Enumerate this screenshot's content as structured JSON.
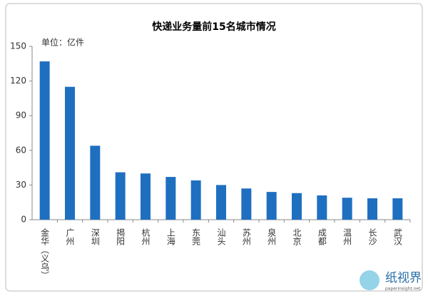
{
  "chart_data": {
    "type": "bar",
    "title": "快递业务量前15名城市情况",
    "unit_label": "单位：亿件",
    "categories": [
      "金华（义乌）",
      "广州",
      "深圳",
      "揭阳",
      "杭州",
      "上海",
      "东莞",
      "汕头",
      "苏州",
      "泉州",
      "北京",
      "成都",
      "温州",
      "长沙",
      "武汉"
    ],
    "values": [
      137,
      115,
      64,
      41,
      40,
      37,
      34,
      30,
      27,
      24,
      23,
      21,
      19,
      18.5,
      18.5
    ],
    "color": "#1f6fc0",
    "ylim": [
      0,
      150
    ],
    "yticks": [
      0,
      30,
      60,
      90,
      120,
      150
    ],
    "grid": false
  },
  "watermark": {
    "name": "纸视界",
    "url": "paperinsight.net"
  }
}
